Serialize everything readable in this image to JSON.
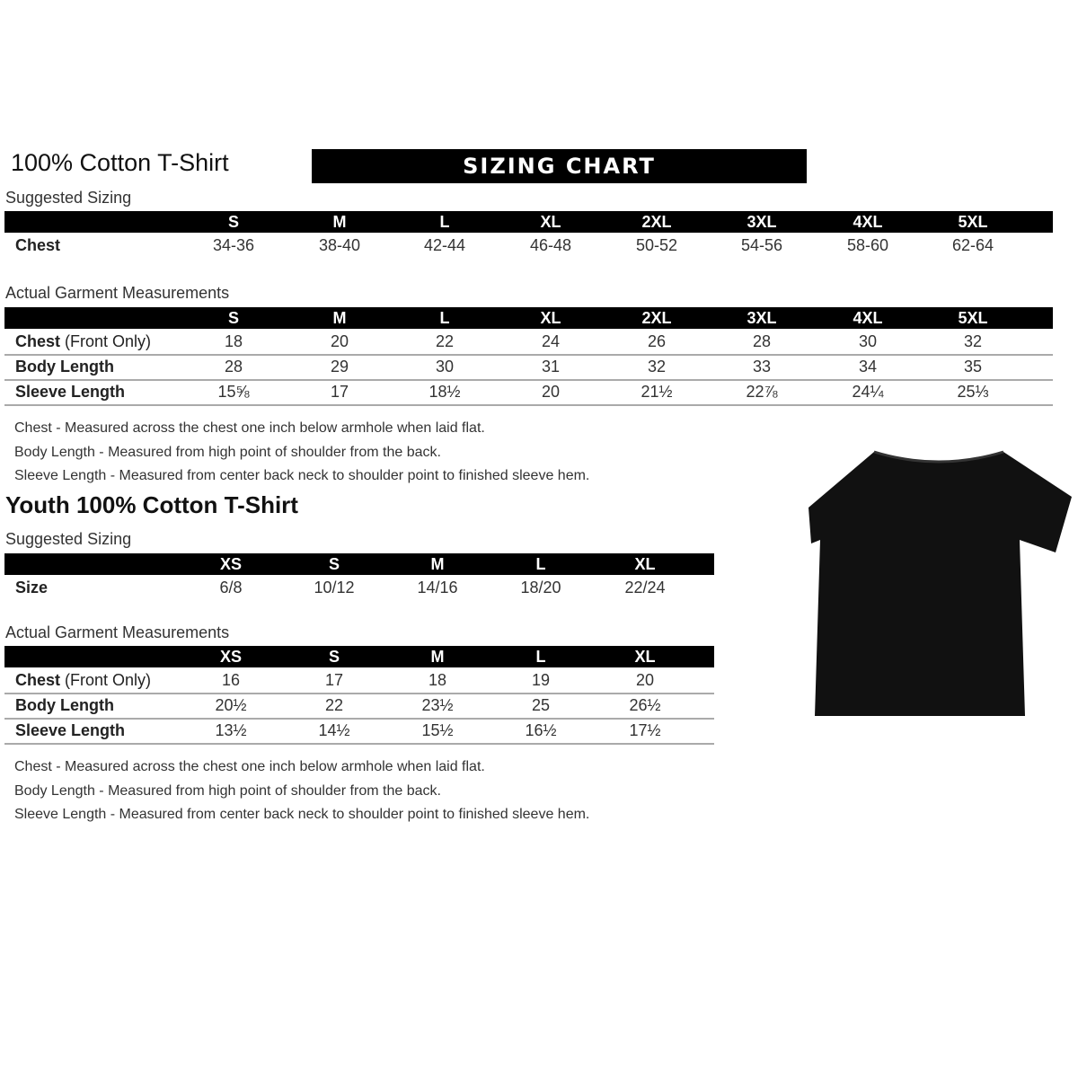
{
  "banner": "SIZING CHART",
  "adult": {
    "title": "100% Cotton T-Shirt",
    "suggested_label": "Suggested Sizing",
    "sizes": [
      "S",
      "M",
      "L",
      "XL",
      "2XL",
      "3XL",
      "4XL",
      "5XL"
    ],
    "suggested_rows": [
      {
        "label": "Chest",
        "values": [
          "34-36",
          "38-40",
          "42-44",
          "46-48",
          "50-52",
          "54-56",
          "58-60",
          "62-64"
        ]
      }
    ],
    "actual_label": "Actual Garment Measurements",
    "actual_rows": [
      {
        "label": "Chest",
        "label_suffix": "(Front Only)",
        "values": [
          "18",
          "20",
          "22",
          "24",
          "26",
          "28",
          "30",
          "32"
        ]
      },
      {
        "label": "Body Length",
        "label_suffix": "",
        "values": [
          "28",
          "29",
          "30",
          "31",
          "32",
          "33",
          "34",
          "35"
        ]
      },
      {
        "label": "Sleeve Length",
        "label_suffix": "",
        "values": [
          "15⅝",
          "17",
          "18½",
          "20",
          "21½",
          "22⅞",
          "24¼",
          "25⅓"
        ]
      }
    ],
    "notes": [
      "Chest - Measured across the chest one inch below armhole when laid flat.",
      "Body Length - Measured from high point of shoulder from the back.",
      "Sleeve Length - Measured from center back neck to shoulder point to finished sleeve hem."
    ]
  },
  "youth": {
    "title": "Youth 100% Cotton T-Shirt",
    "suggested_label": "Suggested Sizing",
    "sizes": [
      "XS",
      "S",
      "M",
      "L",
      "XL"
    ],
    "suggested_rows": [
      {
        "label": "Size",
        "values": [
          "6/8",
          "10/12",
          "14/16",
          "18/20",
          "22/24"
        ]
      }
    ],
    "actual_label": "Actual Garment Measurements",
    "actual_rows": [
      {
        "label": "Chest",
        "label_suffix": "(Front Only)",
        "values": [
          "16",
          "17",
          "18",
          "19",
          "20"
        ]
      },
      {
        "label": "Body Length",
        "label_suffix": "",
        "values": [
          "20½",
          "22",
          "23½",
          "25",
          "26½"
        ]
      },
      {
        "label": "Sleeve Length",
        "label_suffix": "",
        "values": [
          "13½",
          "14½",
          "15½",
          "16½",
          "17½"
        ]
      }
    ],
    "notes": [
      "Chest - Measured across the chest one inch below armhole when laid flat.",
      "Body Length - Measured from high point of shoulder from the back.",
      "Sleeve Length - Measured from center back neck to shoulder point to finished sleeve hem."
    ]
  },
  "image": {
    "icon": "black-tshirt",
    "color": "#000000"
  }
}
